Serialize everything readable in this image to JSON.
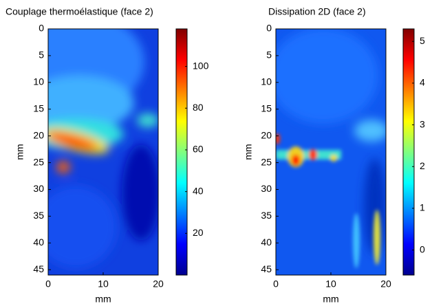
{
  "chart_data": [
    {
      "type": "heatmap",
      "title": "Couplage thermoélastique (face 2)",
      "xlabel": "mm",
      "ylabel": "mm",
      "xlim": [
        0,
        20
      ],
      "ylim": [
        0,
        46
      ],
      "xticks": [
        0,
        10,
        20
      ],
      "yticks": [
        0,
        5,
        10,
        15,
        20,
        25,
        30,
        35,
        40,
        45
      ],
      "y_reversed": true,
      "colormap": "jet",
      "clim": [
        0,
        118
      ],
      "cticks": [
        20,
        40,
        60,
        80,
        100
      ]
    },
    {
      "type": "heatmap",
      "title": "Dissipation 2D (face 2)",
      "xlabel": "mm",
      "ylabel": "mm",
      "xlim": [
        0,
        20
      ],
      "ylim": [
        0,
        46
      ],
      "xticks": [
        0,
        10,
        20
      ],
      "yticks": [
        0,
        5,
        10,
        15,
        20,
        25,
        30,
        35,
        40,
        45
      ],
      "y_reversed": true,
      "colormap": "jet",
      "clim": [
        -0.6,
        5.3
      ],
      "cticks": [
        0,
        1,
        2,
        3,
        4,
        5
      ]
    }
  ]
}
